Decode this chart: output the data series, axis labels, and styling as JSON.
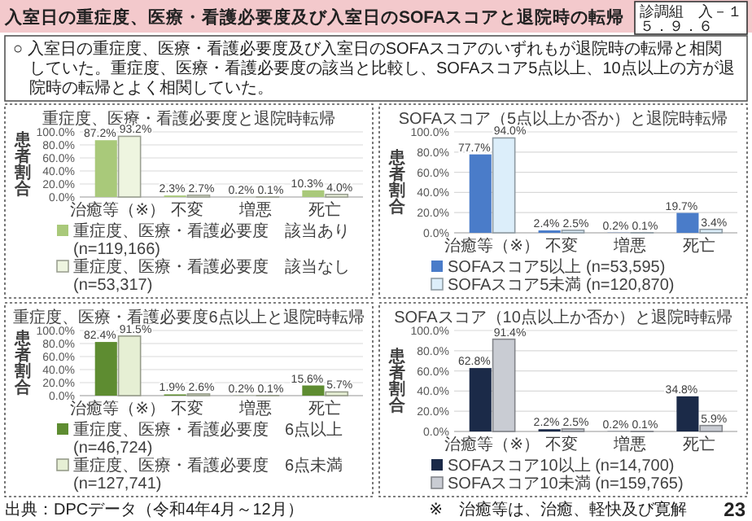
{
  "chart_data": [
    {
      "type": "bar",
      "title": "重症度、医療・看護必要度と退院時転帰",
      "ylabel": "患者割合",
      "categories": [
        "治癒等（※）",
        "不変",
        "増悪",
        "死亡"
      ],
      "ylim": [
        0,
        100
      ],
      "yticks": [
        {
          "value": 0,
          "label": "0.0%"
        },
        {
          "value": 20,
          "label": "20.0%"
        },
        {
          "value": 40,
          "label": "40.0%"
        },
        {
          "value": 60,
          "label": "60.0%"
        },
        {
          "value": 80,
          "label": "80.0%"
        },
        {
          "value": 100,
          "label": "100.0%"
        }
      ],
      "grid": "y",
      "legend": "bottom",
      "series": [
        {
          "name": "重症度、医療・看護必要度　該当あり (n=119,166)",
          "color": "#a9c97a",
          "values": [
            87.2,
            2.3,
            0.2,
            10.3
          ],
          "value_labels": [
            "87.2%",
            "2.3%",
            "0.2%",
            "10.3%"
          ]
        },
        {
          "name": "重症度、医療・看護必要度　該当なし (n=53,317)",
          "color": "#eef5e0",
          "values": [
            93.2,
            2.7,
            0.1,
            4.0
          ],
          "value_labels": [
            "93.2%",
            "2.7%",
            "0.1%",
            "4.0%"
          ]
        }
      ],
      "annotations": [
        "入室日の重症度、医療・看護必要度及び入室日のSOFAスコアと退院時の転帰",
        "診調組　入－１",
        "５．９．６",
        "○ 入室日の重症度、医療・看護必要度及び入室日のSOFAスコアのいずれもが退院時の転帰と相関していた。重症度、医療・看護必要度の該当と比較し、SOFAスコア5点以上、10点以上の方が退院時の転帰とよく相関していた。",
        "出典：DPCデータ（令和4年4月～12月）",
        "※　治癒等は、治癒、軽快及び寛解",
        "23"
      ]
    },
    {
      "type": "bar",
      "title": "SOFAスコア（5点以上か否か）と退院時転帰",
      "ylabel": "患者割合",
      "categories": [
        "治癒等（※）",
        "不変",
        "増悪",
        "死亡"
      ],
      "ylim": [
        0,
        100
      ],
      "yticks": [
        {
          "value": 0,
          "label": "0.0%"
        },
        {
          "value": 20,
          "label": "20.0%"
        },
        {
          "value": 40,
          "label": "40.0%"
        },
        {
          "value": 60,
          "label": "60.0%"
        },
        {
          "value": 80,
          "label": "80.0%"
        },
        {
          "value": 100,
          "label": "100.0%"
        }
      ],
      "grid": "y",
      "legend": "bottom",
      "series": [
        {
          "name": "SOFAスコア5以上 (n=53,595)",
          "color": "#4a7cc9",
          "values": [
            77.7,
            2.4,
            0.2,
            19.7
          ],
          "value_labels": [
            "77.7%",
            "2.4%",
            "0.2%",
            "19.7%"
          ]
        },
        {
          "name": "SOFAスコア5未満 (n=120,870)",
          "color": "#dceefa",
          "values": [
            94.0,
            2.5,
            0.1,
            3.4
          ],
          "value_labels": [
            "94.0%",
            "2.5%",
            "0.1%",
            "3.4%"
          ]
        }
      ]
    },
    {
      "type": "bar",
      "title": "重症度、医療・看護必要度6点以上と退院時転帰",
      "ylabel": "患者割合",
      "categories": [
        "治癒等（※）",
        "不変",
        "増悪",
        "死亡"
      ],
      "ylim": [
        0,
        100
      ],
      "yticks": [
        {
          "value": 0,
          "label": "0.0%"
        },
        {
          "value": 20,
          "label": "20.0%"
        },
        {
          "value": 40,
          "label": "40.0%"
        },
        {
          "value": 60,
          "label": "60.0%"
        },
        {
          "value": 80,
          "label": "80.0%"
        },
        {
          "value": 100,
          "label": "100.0%"
        }
      ],
      "grid": "y",
      "legend": "bottom",
      "series": [
        {
          "name": "重症度、医療・看護必要度　6点以上 (n=46,724)",
          "color": "#5e8c31",
          "values": [
            82.4,
            1.9,
            0.2,
            15.6
          ],
          "value_labels": [
            "82.4%",
            "1.9%",
            "0.2%",
            "15.6%"
          ]
        },
        {
          "name": "重症度、医療・看護必要度　6点未満 (n=127,741)",
          "color": "#e6efd4",
          "values": [
            91.5,
            2.6,
            0.1,
            5.7
          ],
          "value_labels": [
            "91.5%",
            "2.6%",
            "0.1%",
            "5.7%"
          ]
        }
      ]
    },
    {
      "type": "bar",
      "title": "SOFAスコア（10点以上か否か）と退院時転帰",
      "ylabel": "患者割合",
      "categories": [
        "治癒等（※）",
        "不変",
        "増悪",
        "死亡"
      ],
      "ylim": [
        0,
        100
      ],
      "yticks": [
        {
          "value": 0,
          "label": "0.0%"
        },
        {
          "value": 20,
          "label": "20.0%"
        },
        {
          "value": 40,
          "label": "40.0%"
        },
        {
          "value": 60,
          "label": "60.0%"
        },
        {
          "value": 80,
          "label": "80.0%"
        },
        {
          "value": 100,
          "label": "100.0%"
        }
      ],
      "grid": "y",
      "legend": "bottom",
      "series": [
        {
          "name": "SOFAスコア10以上 (n=14,700)",
          "color": "#1b2a48",
          "values": [
            62.8,
            2.2,
            0.2,
            34.8
          ],
          "value_labels": [
            "62.8%",
            "2.2%",
            "0.2%",
            "34.8%"
          ]
        },
        {
          "name": "SOFAスコア10未満 (n=159,765)",
          "color": "#c9ccd3",
          "values": [
            91.4,
            2.5,
            0.1,
            5.9
          ],
          "value_labels": [
            "91.4%",
            "2.5%",
            "0.1%",
            "5.9%"
          ]
        }
      ]
    }
  ]
}
